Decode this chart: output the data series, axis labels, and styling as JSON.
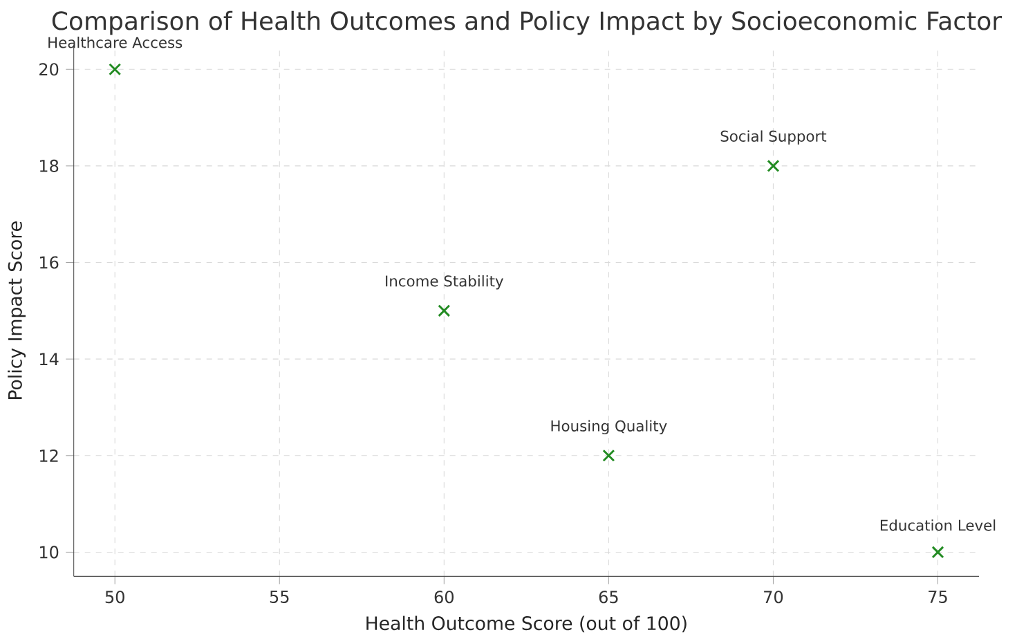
{
  "chart_data": {
    "type": "scatter",
    "title": "Comparison of Health Outcomes and Policy Impact by Socioeconomic Factor",
    "xlabel": "Health Outcome Score (out of 100)",
    "ylabel": "Policy Impact Score",
    "x": [
      50,
      60,
      65,
      70,
      75
    ],
    "values": [
      20,
      15,
      12,
      18,
      10
    ],
    "color": "#228b22",
    "marker": "cross",
    "grid": true,
    "xlim": [
      48.75,
      76.25
    ],
    "ylim": [
      9.5,
      20.5
    ],
    "xticks": [
      50,
      55,
      60,
      65,
      70,
      75
    ],
    "yticks": [
      10,
      12,
      14,
      16,
      18,
      20
    ],
    "annotations": [
      {
        "text": "Healthcare Access",
        "x": 50,
        "y": 20
      },
      {
        "text": "Income Stability",
        "x": 60,
        "y": 15
      },
      {
        "text": "Housing Quality",
        "x": 65,
        "y": 12
      },
      {
        "text": "Social Support",
        "x": 70,
        "y": 18
      },
      {
        "text": "Education Level",
        "x": 75,
        "y": 10
      }
    ]
  }
}
